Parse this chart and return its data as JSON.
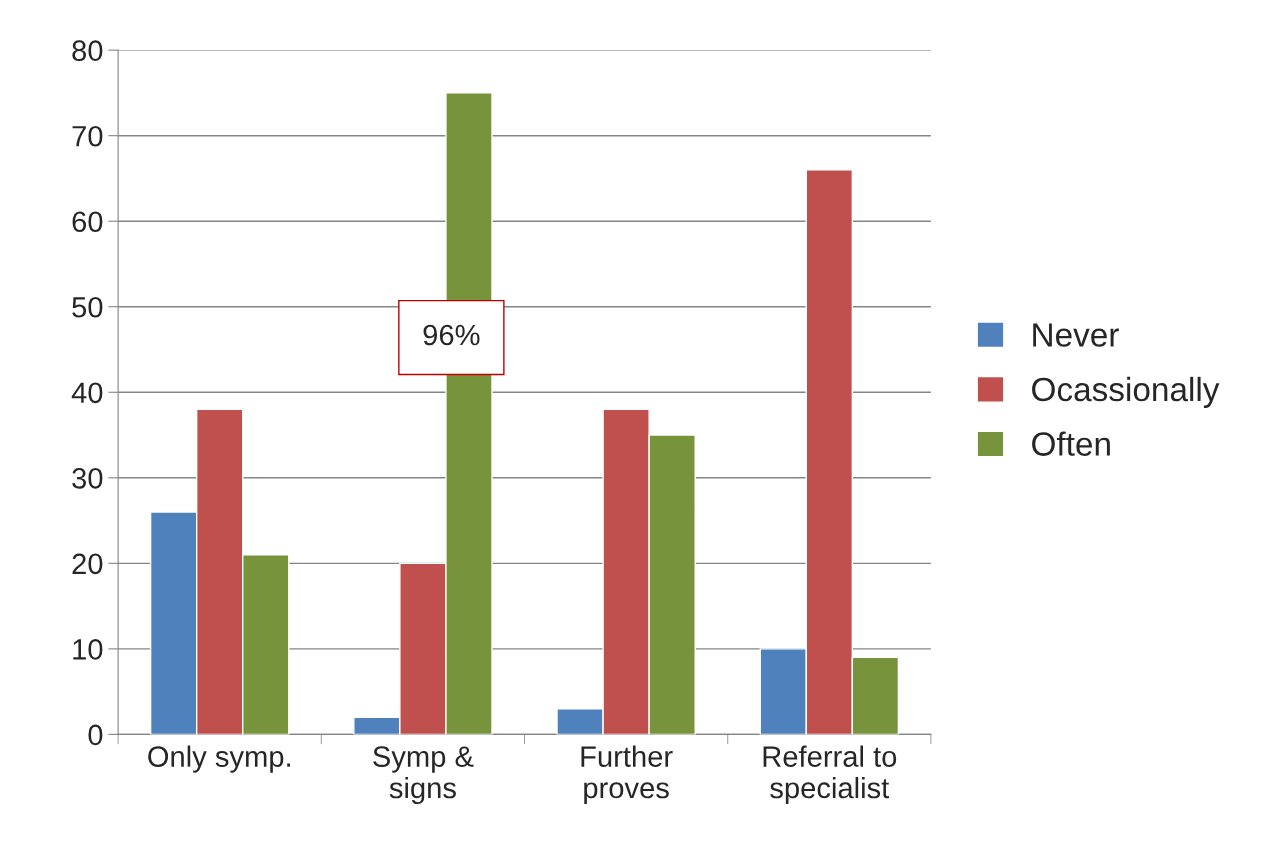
{
  "chart_data": {
    "type": "bar",
    "categories": [
      "Only symp.",
      "Symp &\nsigns",
      "Further\nproves",
      "Referral to\nspecialist"
    ],
    "series": [
      {
        "name": "Never",
        "color": "#4f81bd",
        "values": [
          26,
          2,
          3,
          10
        ]
      },
      {
        "name": "Ocassionally",
        "color": "#c0504d",
        "values": [
          38,
          20,
          38,
          66
        ]
      },
      {
        "name": "Often",
        "color": "#77933c",
        "values": [
          21,
          75,
          35,
          9
        ]
      }
    ],
    "ylim": [
      0,
      80
    ],
    "yticks": [
      0,
      10,
      20,
      30,
      40,
      50,
      60,
      70,
      80
    ],
    "grid": "y",
    "legend": "right",
    "annotations": [
      "96%"
    ]
  }
}
